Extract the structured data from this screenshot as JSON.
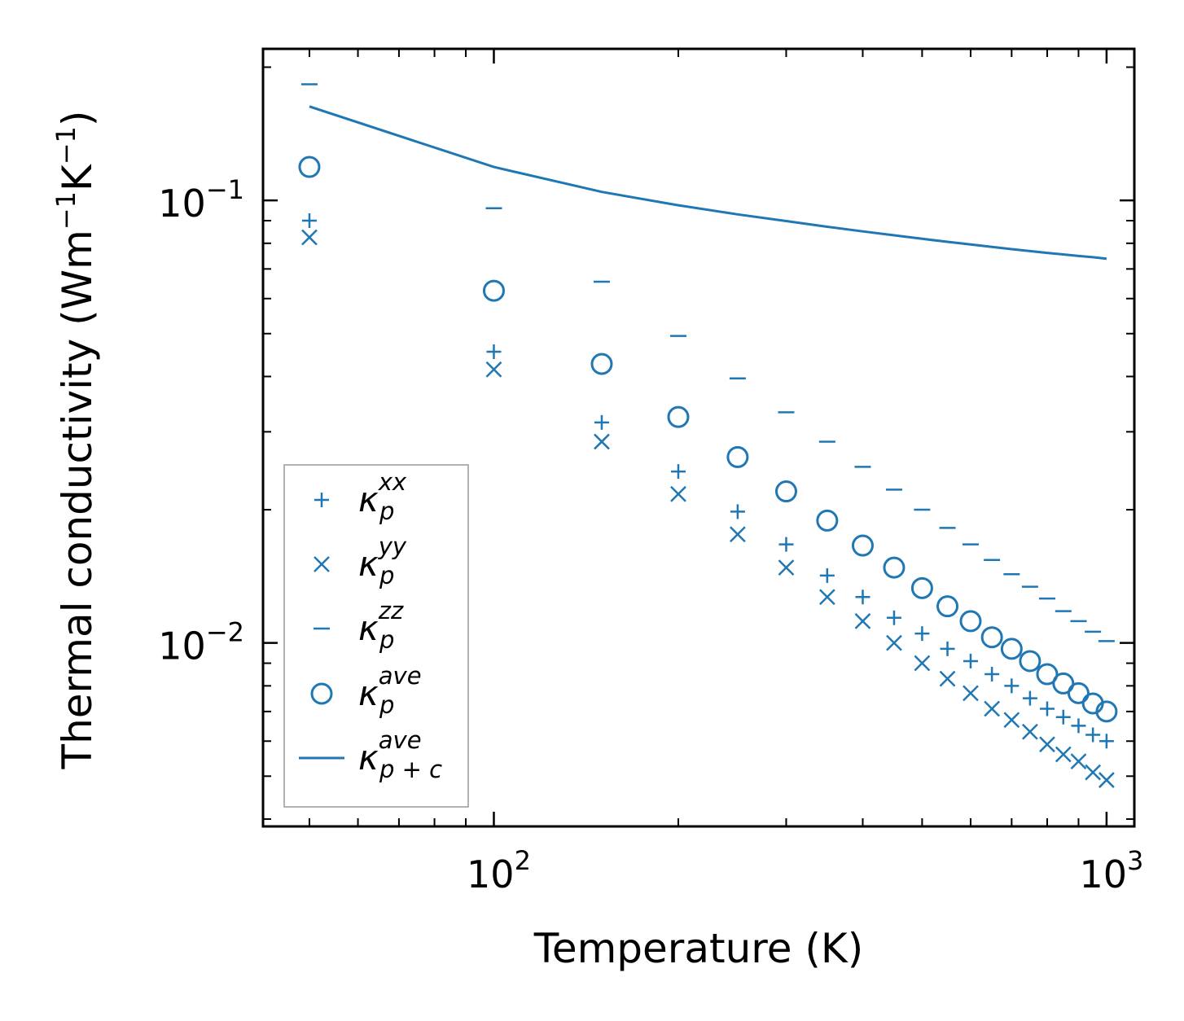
{
  "chart_data": {
    "type": "scatter",
    "xscale": "log",
    "yscale": "log",
    "xlabel": "Temperature (K)",
    "ylabel_main": "Thermal conductivity (Wm",
    "ylabel_unit2": "K",
    "ylabel_exp": "−1",
    "ylabel_close": ")",
    "xlim": [
      42,
      1110
    ],
    "ylim": [
      0.00385,
      0.22
    ],
    "x_ticks": [
      {
        "value": 100,
        "base": "10",
        "exp": "2"
      },
      {
        "value": 1000,
        "base": "10",
        "exp": "3"
      }
    ],
    "y_ticks": [
      {
        "value": 0.1,
        "base": "10",
        "exp": "−1"
      },
      {
        "value": 0.01,
        "base": "10",
        "exp": "−2"
      }
    ],
    "color": "#1f77b4",
    "legend_position": "lower-left",
    "x": [
      50,
      100,
      150,
      200,
      250,
      300,
      350,
      400,
      450,
      500,
      550,
      600,
      650,
      700,
      750,
      800,
      850,
      900,
      950,
      1000
    ],
    "series": [
      {
        "name": "κ_p^xx",
        "symbol": "κ",
        "sub": "p",
        "sup": "xx",
        "marker": "plus",
        "values": [
          0.09,
          0.0455,
          0.0315,
          0.0244,
          0.0198,
          0.0167,
          0.0142,
          0.0127,
          0.0114,
          0.0105,
          0.0097,
          0.0091,
          0.0085,
          0.008,
          0.0075,
          0.0071,
          0.0068,
          0.0065,
          0.0062,
          0.006
        ]
      },
      {
        "name": "κ_p^yy",
        "symbol": "κ",
        "sub": "p",
        "sup": "yy",
        "marker": "x",
        "values": [
          0.0825,
          0.0415,
          0.0285,
          0.0217,
          0.0176,
          0.0148,
          0.0127,
          0.0112,
          0.01,
          0.009,
          0.0083,
          0.0077,
          0.0071,
          0.0067,
          0.0063,
          0.0059,
          0.0056,
          0.0054,
          0.0051,
          0.0049
        ]
      },
      {
        "name": "κ_p^zz",
        "symbol": "κ",
        "sub": "p",
        "sup": "zz",
        "marker": "minus",
        "values": [
          0.183,
          0.096,
          0.0655,
          0.0494,
          0.0396,
          0.0332,
          0.0285,
          0.025,
          0.0222,
          0.02,
          0.0182,
          0.0167,
          0.0154,
          0.0143,
          0.0134,
          0.0126,
          0.0118,
          0.0112,
          0.0106,
          0.0101
        ]
      },
      {
        "name": "κ_p^ave",
        "symbol": "κ",
        "sub": "p",
        "sup": "ave",
        "marker": "circle",
        "values": [
          0.119,
          0.0625,
          0.0427,
          0.0324,
          0.0263,
          0.022,
          0.0189,
          0.0166,
          0.0148,
          0.0133,
          0.0121,
          0.0112,
          0.0103,
          0.0097,
          0.0091,
          0.0085,
          0.0081,
          0.0077,
          0.0073,
          0.007
        ]
      },
      {
        "name": "κ_p+c^ave",
        "symbol": "κ",
        "sub": "p + c",
        "sup": "ave",
        "marker": "line",
        "values": [
          0.163,
          0.119,
          0.1045,
          0.0975,
          0.093,
          0.0898,
          0.0872,
          0.0851,
          0.0834,
          0.0819,
          0.0806,
          0.0795,
          0.0785,
          0.0776,
          0.0768,
          0.0761,
          0.0755,
          0.0749,
          0.0744,
          0.0738
        ]
      }
    ]
  }
}
